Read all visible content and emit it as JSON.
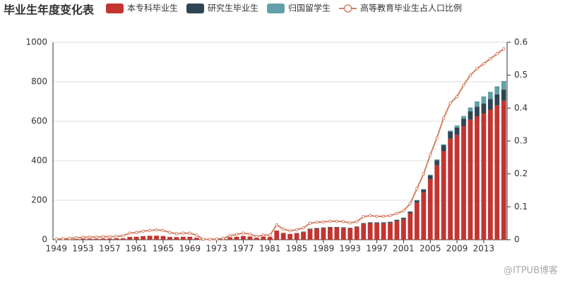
{
  "chart_data": {
    "type": "bar",
    "title": "毕业生年度变化表",
    "categories": [
      "1949",
      null,
      null,
      null,
      "1953",
      null,
      null,
      null,
      "1957",
      null,
      null,
      null,
      "1961",
      null,
      null,
      null,
      "1965",
      null,
      null,
      null,
      "1969",
      null,
      null,
      null,
      "1973",
      null,
      null,
      null,
      "1977",
      null,
      null,
      null,
      "1981",
      null,
      null,
      null,
      "1985",
      null,
      null,
      null,
      "1989",
      null,
      null,
      null,
      "1993",
      null,
      null,
      null,
      "1997",
      null,
      null,
      null,
      "2001",
      null,
      null,
      null,
      "2005",
      null,
      null,
      null,
      "2009",
      null,
      null,
      null,
      "2013",
      null,
      null,
      null
    ],
    "series": [
      {
        "name": "本专科毕业生",
        "color": "#c23531",
        "values": [
          2,
          2,
          2,
          3,
          5,
          5,
          5,
          6,
          6,
          7,
          7,
          14,
          15,
          18,
          20,
          20,
          19,
          14,
          13,
          15,
          15,
          10,
          1,
          2,
          3,
          4,
          12,
          15,
          19,
          16,
          9,
          15,
          14,
          46,
          34,
          29,
          32,
          39,
          53,
          55,
          58,
          61,
          61,
          60,
          57,
          64,
          81,
          84,
          83,
          83,
          85,
          95,
          104,
          134,
          188,
          239,
          307,
          377,
          448,
          512,
          531,
          575,
          608,
          625,
          639,
          659,
          681,
          704
        ]
      },
      {
        "name": "研究生毕业生",
        "color": "#2f4554",
        "values": [
          0,
          0,
          0,
          0,
          0,
          0,
          0,
          0,
          0,
          0,
          0,
          0,
          0,
          0,
          0,
          0,
          0,
          0,
          0,
          0,
          0,
          0,
          0,
          0,
          0,
          0,
          0,
          0,
          0,
          0,
          0,
          0,
          0,
          0.4,
          0.4,
          0.3,
          1.7,
          1.7,
          2.8,
          4,
          3.7,
          3.5,
          3.3,
          2.6,
          2.8,
          2.8,
          3.2,
          3.9,
          4.7,
          4.7,
          5.5,
          5.9,
          6.8,
          8.1,
          11.1,
          15.1,
          19,
          25.6,
          31.2,
          34.5,
          37.1,
          38.4,
          43,
          48.6,
          51.4,
          53.6,
          55.2,
          56.4
        ]
      },
      {
        "name": "归国留学生",
        "color": "#61a0a8",
        "values": [
          0,
          0,
          0,
          0,
          0,
          0,
          0,
          0,
          0,
          0,
          0,
          0,
          0,
          0,
          0,
          0,
          0,
          0,
          0,
          0,
          0,
          0,
          0,
          0,
          0,
          0,
          0,
          0,
          0,
          0,
          0,
          0,
          0,
          0,
          0,
          0,
          0,
          0,
          0,
          0,
          0,
          0,
          0,
          0,
          0,
          0,
          0,
          0,
          0,
          0,
          0,
          0.9,
          1.2,
          1.8,
          2,
          2.5,
          3.5,
          4.2,
          4.4,
          6.9,
          10.8,
          13.5,
          18.6,
          27.3,
          35.4,
          36.5,
          40.9,
          43.3
        ]
      },
      {
        "name": "高等教育毕业生占人口比例",
        "color": "#d48265",
        "type": "line",
        "axis": "y2",
        "values": [
          0.002,
          0.003,
          0.004,
          0.006,
          0.007,
          0.008,
          0.008,
          0.009,
          0.009,
          0.01,
          0.012,
          0.02,
          0.022,
          0.026,
          0.028,
          0.03,
          0.028,
          0.022,
          0.018,
          0.02,
          0.02,
          0.014,
          0.001,
          0.001,
          0.002,
          0.004,
          0.012,
          0.016,
          0.02,
          0.017,
          0.01,
          0.014,
          0.014,
          0.045,
          0.032,
          0.027,
          0.03,
          0.036,
          0.05,
          0.053,
          0.054,
          0.056,
          0.056,
          0.055,
          0.051,
          0.055,
          0.07,
          0.073,
          0.071,
          0.071,
          0.073,
          0.08,
          0.088,
          0.11,
          0.155,
          0.2,
          0.258,
          0.31,
          0.37,
          0.415,
          0.435,
          0.47,
          0.5,
          0.52,
          0.535,
          0.55,
          0.565,
          0.58
        ]
      }
    ],
    "ylim": [
      0,
      1000
    ],
    "yticks": [
      0,
      200,
      400,
      600,
      800,
      1000
    ],
    "y2lim": [
      0,
      0.6
    ],
    "y2ticks": [
      0,
      0.1,
      0.2,
      0.3,
      0.4,
      0.5,
      0.6
    ],
    "grid": true,
    "stacked": true,
    "legend": "top"
  },
  "watermark": "@ITPUB博客"
}
